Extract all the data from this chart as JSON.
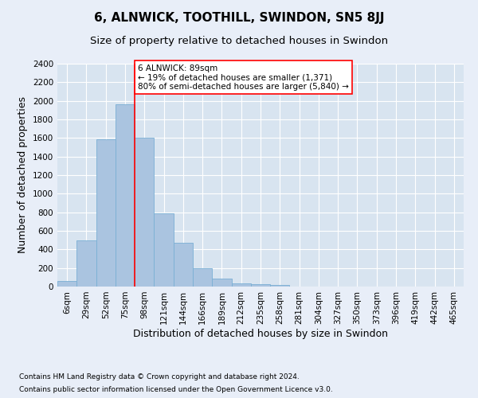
{
  "title": "6, ALNWICK, TOOTHILL, SWINDON, SN5 8JJ",
  "subtitle": "Size of property relative to detached houses in Swindon",
  "xlabel": "Distribution of detached houses by size in Swindon",
  "ylabel": "Number of detached properties",
  "footer1": "Contains HM Land Registry data © Crown copyright and database right 2024.",
  "footer2": "Contains public sector information licensed under the Open Government Licence v3.0.",
  "categories": [
    "6sqm",
    "29sqm",
    "52sqm",
    "75sqm",
    "98sqm",
    "121sqm",
    "144sqm",
    "166sqm",
    "189sqm",
    "212sqm",
    "235sqm",
    "258sqm",
    "281sqm",
    "304sqm",
    "327sqm",
    "350sqm",
    "373sqm",
    "396sqm",
    "419sqm",
    "442sqm",
    "465sqm"
  ],
  "values": [
    60,
    500,
    1590,
    1960,
    1600,
    790,
    470,
    200,
    90,
    35,
    25,
    20,
    0,
    0,
    0,
    0,
    0,
    0,
    0,
    0,
    0
  ],
  "bar_color": "#aac4e0",
  "bar_edge_color": "#7aafd4",
  "red_line_index": 3.5,
  "annotation_text_line1": "6 ALNWICK: 89sqm",
  "annotation_text_line2": "← 19% of detached houses are smaller (1,371)",
  "annotation_text_line3": "80% of semi-detached houses are larger (5,840) →",
  "ylim": [
    0,
    2400
  ],
  "yticks": [
    0,
    200,
    400,
    600,
    800,
    1000,
    1200,
    1400,
    1600,
    1800,
    2000,
    2200,
    2400
  ],
  "bg_color": "#e8eef8",
  "plot_bg_color": "#d8e4f0",
  "grid_color": "#ffffff",
  "title_fontsize": 11,
  "subtitle_fontsize": 9.5,
  "axis_label_fontsize": 9,
  "tick_fontsize": 7.5,
  "footer_fontsize": 6.5
}
